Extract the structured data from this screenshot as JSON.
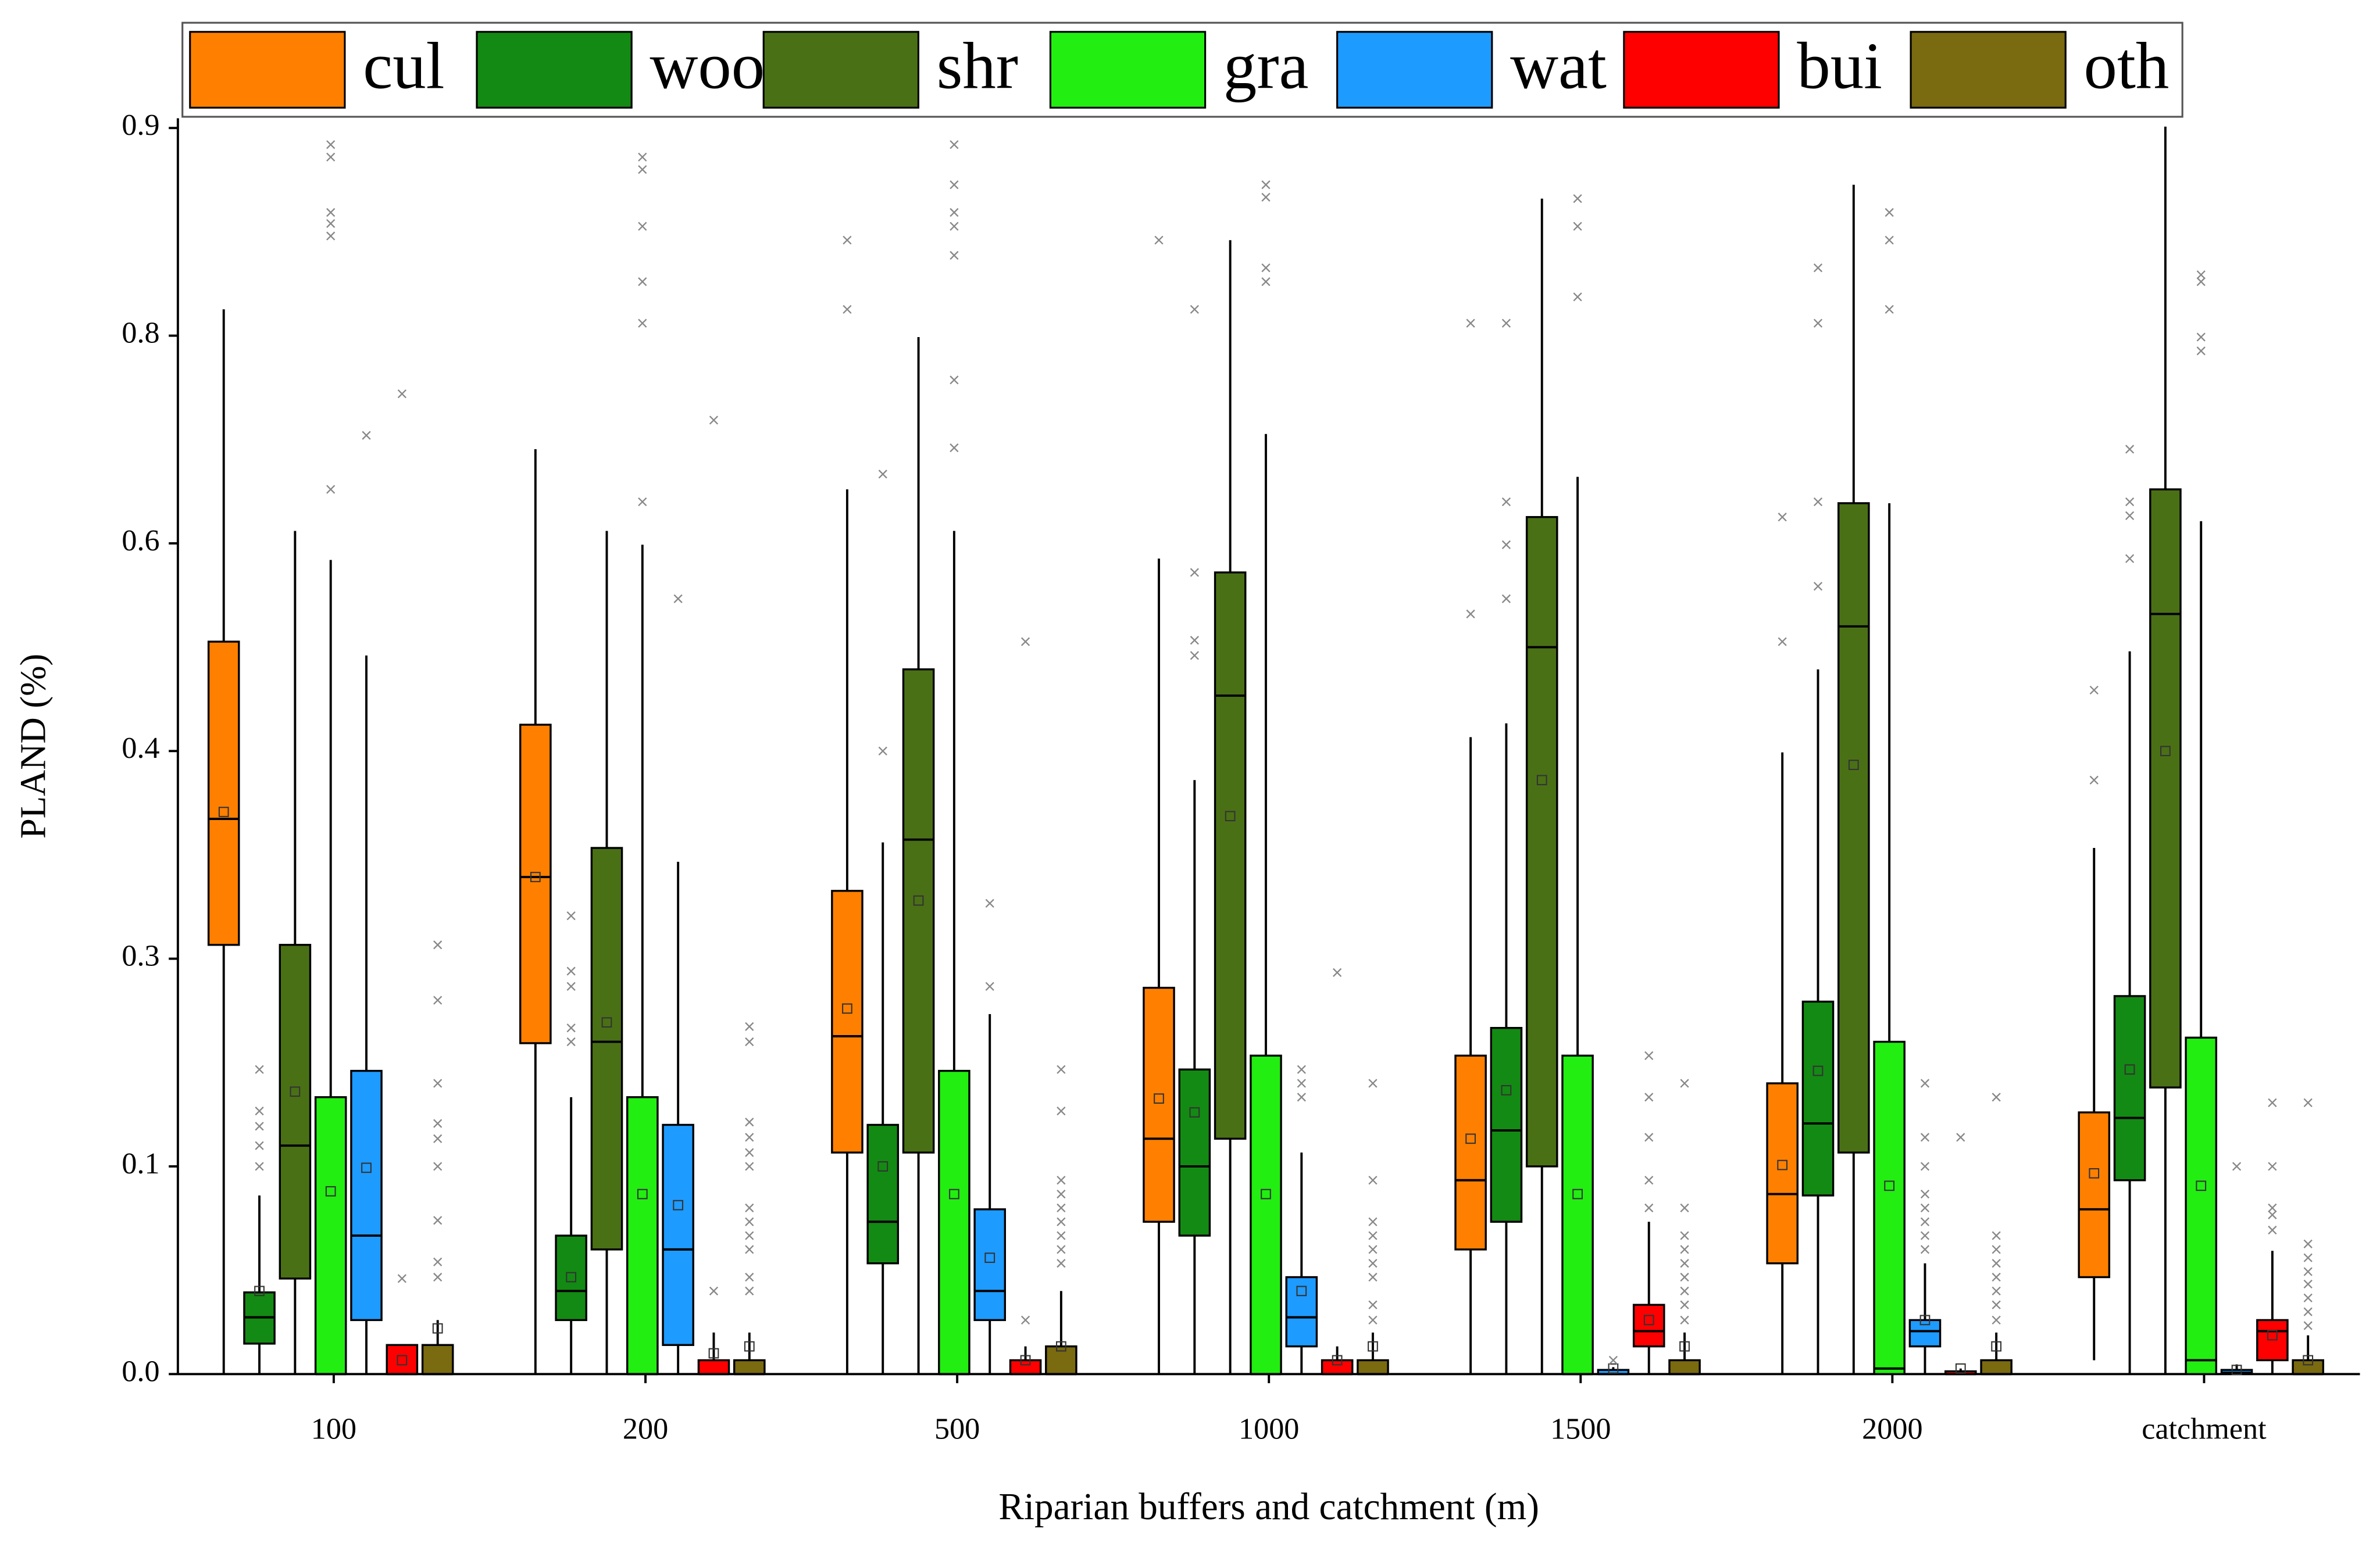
{
  "chart_data": {
    "type": "box",
    "y_label": "PLAND (%)",
    "x_label": "Riparian buffers and catchment (m)",
    "categories": [
      "100",
      "200",
      "500",
      "1000",
      "1500",
      "2000",
      "catchment"
    ],
    "ylim": [
      0,
      0.907
    ],
    "yticks": [
      {
        "value": 0,
        "label": "0.0"
      },
      {
        "value": 0.15,
        "label": "0.1"
      },
      0.3,
      {
        "value": 0.45,
        "label": "0.4"
      },
      0.6,
      {
        "value": 0.75,
        "label": "0.8"
      },
      0.9
    ],
    "series": [
      {
        "name": "cul",
        "color": "#ff8000",
        "min": [
          0,
          0,
          0,
          0,
          0,
          0,
          0.01
        ],
        "q1": [
          0.31,
          0.239,
          0.16,
          0.11,
          0.09,
          0.08,
          0.07
        ],
        "median": [
          0.401,
          0.359,
          0.244,
          0.17,
          0.14,
          0.13,
          0.119
        ],
        "q3": [
          0.529,
          0.469,
          0.349,
          0.279,
          0.23,
          0.21,
          0.189
        ],
        "max": [
          0.769,
          0.668,
          0.639,
          0.589,
          0.46,
          0.449,
          0.38
        ],
        "mean": [
          0.406,
          0.359,
          0.264,
          0.199,
          0.17,
          0.151,
          0.145
        ],
        "outliers": [
          [],
          [],
          [
            0.819,
            0.769
          ],
          [
            0.819
          ],
          [
            0.759,
            0.549
          ],
          [
            0.619,
            0.529
          ],
          [
            0.494,
            0.429
          ]
        ]
      },
      {
        "name": "woo",
        "color": "#138a13",
        "min": [
          0,
          0,
          0,
          0,
          0,
          0,
          0
        ],
        "q1": [
          0.022,
          0.039,
          0.08,
          0.1,
          0.11,
          0.129,
          0.14
        ],
        "median": [
          0.041,
          0.06,
          0.11,
          0.15,
          0.176,
          0.181,
          0.185
        ],
        "q3": [
          0.059,
          0.1,
          0.18,
          0.22,
          0.25,
          0.269,
          0.273
        ],
        "max": [
          0.129,
          0.2,
          0.384,
          0.429,
          0.47,
          0.509,
          0.522
        ],
        "mean": [
          0.06,
          0.07,
          0.15,
          0.189,
          0.205,
          0.219,
          0.22
        ],
        "outliers": [
          [
            0.22,
            0.19,
            0.179,
            0.165,
            0.15
          ],
          [
            0.331,
            0.291,
            0.28,
            0.25,
            0.24
          ],
          [
            0.65,
            0.45
          ],
          [
            0.769,
            0.579,
            0.53,
            0.519
          ],
          [
            0.759,
            0.63,
            0.599,
            0.56
          ],
          [
            0.799,
            0.759,
            0.63,
            0.569
          ],
          [
            0.668,
            0.63,
            0.62,
            0.589
          ]
        ]
      },
      {
        "name": "shr",
        "color": "#4a7016",
        "min": [
          0,
          0,
          0,
          0,
          0,
          0,
          0
        ],
        "q1": [
          0.069,
          0.09,
          0.16,
          0.17,
          0.15,
          0.16,
          0.207
        ],
        "median": [
          0.165,
          0.24,
          0.386,
          0.49,
          0.525,
          0.54,
          0.549
        ],
        "q3": [
          0.31,
          0.38,
          0.509,
          0.579,
          0.619,
          0.629,
          0.639
        ],
        "max": [
          0.609,
          0.609,
          0.749,
          0.819,
          0.849,
          0.859,
          0.901
        ],
        "mean": [
          0.204,
          0.254,
          0.342,
          0.403,
          0.429,
          0.44,
          0.45
        ],
        "outliers": [
          [],
          [],
          [],
          [],
          [],
          [],
          []
        ]
      },
      {
        "name": "gra",
        "color": "#22ee11",
        "min": [
          0,
          0,
          0,
          0,
          0,
          0,
          0
        ],
        "q1": [
          0,
          0,
          0,
          0,
          0,
          0,
          0
        ],
        "median": [
          0,
          0,
          0,
          0,
          0,
          0.004,
          0.01
        ],
        "q3": [
          0.2,
          0.2,
          0.219,
          0.23,
          0.23,
          0.24,
          0.243
        ],
        "max": [
          0.588,
          0.599,
          0.609,
          0.679,
          0.648,
          0.629,
          0.616
        ],
        "mean": [
          0.132,
          0.13,
          0.13,
          0.13,
          0.13,
          0.136,
          0.136
        ],
        "outliers": [
          [
            0.888,
            0.879,
            0.839,
            0.831,
            0.822,
            0.639
          ],
          [
            0.879,
            0.87,
            0.829,
            0.789,
            0.759,
            0.63
          ],
          [
            0.888,
            0.859,
            0.839,
            0.829,
            0.808,
            0.718,
            0.669
          ],
          [
            0.859,
            0.85,
            0.799,
            0.789
          ],
          [
            0.849,
            0.829,
            0.778
          ],
          [
            0.839,
            0.819,
            0.769
          ],
          [
            0.794,
            0.789,
            0.749,
            0.739
          ]
        ]
      },
      {
        "name": "wat",
        "color": "#1e9bff",
        "min": [
          0,
          0,
          0,
          0,
          0,
          0,
          0
        ],
        "q1": [
          0.039,
          0.021,
          0.039,
          0.02,
          0,
          0.02,
          0
        ],
        "median": [
          0.1,
          0.09,
          0.06,
          0.041,
          0,
          0.031,
          0.001
        ],
        "q3": [
          0.219,
          0.18,
          0.119,
          0.07,
          0.003,
          0.039,
          0.003
        ],
        "max": [
          0.519,
          0.37,
          0.26,
          0.16,
          0.005,
          0.08,
          0.007
        ],
        "mean": [
          0.149,
          0.122,
          0.084,
          0.06,
          0.004,
          0.039,
          0.003
        ],
        "outliers": [
          [
            0.678
          ],
          [
            0.56
          ],
          [
            0.34,
            0.28
          ],
          [
            0.22,
            0.21,
            0.2
          ],
          [
            0.01
          ],
          [
            0.21,
            0.171,
            0.15,
            0.13,
            0.12,
            0.11,
            0.1,
            0.09
          ],
          [
            0.15
          ]
        ]
      },
      {
        "name": "bui",
        "color": "#ff0000",
        "min": [
          0,
          0,
          0,
          0,
          0,
          0,
          0
        ],
        "q1": [
          0,
          0,
          0,
          0,
          0.02,
          0,
          0.01
        ],
        "median": [
          0,
          0,
          0,
          0,
          0.031,
          0,
          0.031
        ],
        "q3": [
          0.021,
          0.01,
          0.01,
          0.01,
          0.05,
          0.002,
          0.039
        ],
        "max": [
          0.021,
          0.03,
          0.02,
          0.02,
          0.11,
          0.004,
          0.089
        ],
        "mean": [
          0.01,
          0.015,
          0.01,
          0.01,
          0.039,
          0.004,
          0.028
        ],
        "outliers": [
          [
            0.708,
            0.069
          ],
          [
            0.689,
            0.06
          ],
          [
            0.529,
            0.039
          ],
          [
            0.29
          ],
          [
            0.23,
            0.2,
            0.171,
            0.14,
            0.12
          ],
          [
            0.171
          ],
          [
            0.196,
            0.15,
            0.12,
            0.115,
            0.104
          ]
        ]
      },
      {
        "name": "oth",
        "color": "#7a6a10",
        "min": [
          0,
          0,
          0,
          0,
          0,
          0,
          0
        ],
        "q1": [
          0,
          0,
          0,
          0,
          0,
          0,
          0
        ],
        "median": [
          0,
          0,
          0,
          0,
          0,
          0,
          0
        ],
        "q3": [
          0.021,
          0.01,
          0.02,
          0.01,
          0.01,
          0.01,
          0.01
        ],
        "max": [
          0.039,
          0.03,
          0.06,
          0.03,
          0.03,
          0.03,
          0.028
        ],
        "mean": [
          0.033,
          0.02,
          0.02,
          0.02,
          0.02,
          0.02,
          0.01
        ],
        "outliers": [
          [
            0.31,
            0.27,
            0.21,
            0.181,
            0.17,
            0.15,
            0.111,
            0.081,
            0.07
          ],
          [
            0.251,
            0.24,
            0.182,
            0.171,
            0.16,
            0.15,
            0.12,
            0.11,
            0.1,
            0.09,
            0.07,
            0.06
          ],
          [
            0.22,
            0.19,
            0.14,
            0.13,
            0.12,
            0.11,
            0.1,
            0.09,
            0.08
          ],
          [
            0.21,
            0.14,
            0.11,
            0.1,
            0.09,
            0.08,
            0.07,
            0.05,
            0.039
          ],
          [
            0.21,
            0.12,
            0.1,
            0.09,
            0.08,
            0.07,
            0.06,
            0.05,
            0.039
          ],
          [
            0.2,
            0.1,
            0.09,
            0.08,
            0.07,
            0.06,
            0.05,
            0.039
          ],
          [
            0.196,
            0.094,
            0.084,
            0.074,
            0.065,
            0.055,
            0.045,
            0.035
          ]
        ]
      }
    ]
  }
}
